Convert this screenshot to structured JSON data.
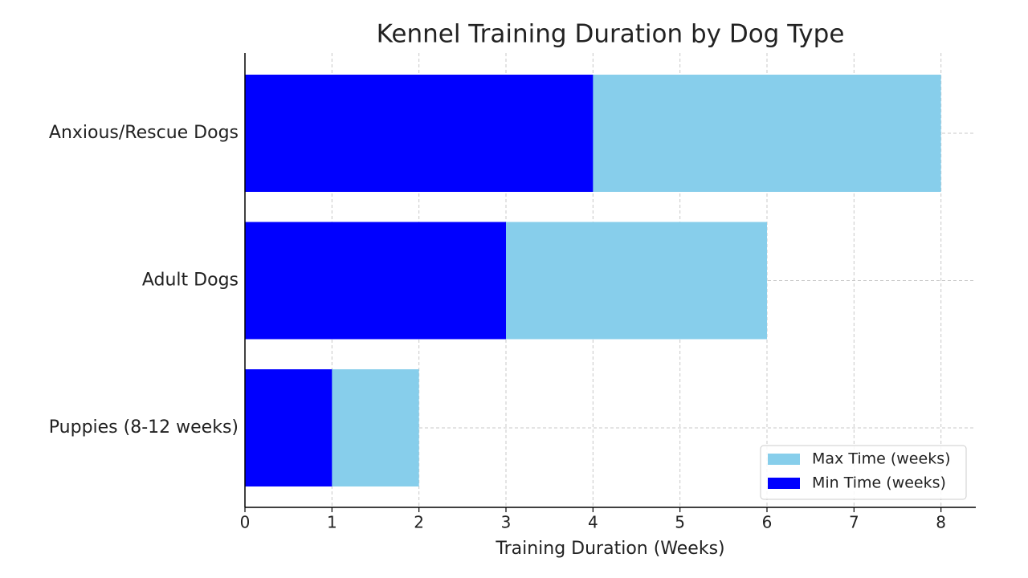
{
  "chart_data": {
    "type": "bar",
    "orientation": "horizontal",
    "title": "Kennel Training Duration by Dog Type",
    "x_label": "Training Duration (Weeks)",
    "categories": [
      "Puppies (8-12 weeks)",
      "Adult Dogs",
      "Anxious/Rescue Dogs"
    ],
    "series": [
      {
        "name": "Max Time (weeks)",
        "color": "#87ceeb",
        "values": [
          2,
          6,
          8
        ]
      },
      {
        "name": "Min Time (weeks)",
        "color": "#0000ff",
        "values": [
          1,
          3,
          4
        ]
      }
    ],
    "xlim": [
      0,
      8.4
    ],
    "xticks": [
      0,
      1,
      2,
      3,
      4,
      5,
      6,
      7,
      8
    ],
    "grid": true,
    "legend": "lower right"
  }
}
